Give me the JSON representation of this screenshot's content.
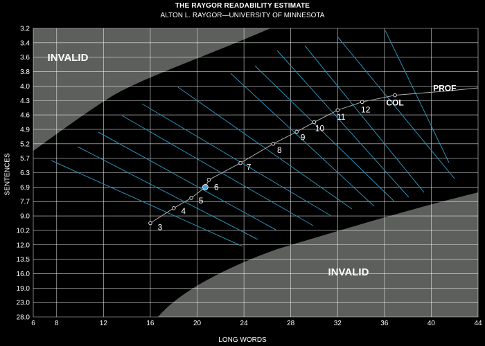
{
  "chart_data": {
    "type": "line",
    "title": "THE RAYGOR READABILITY ESTIMATE",
    "subtitle": "ALTON L. RAYGOR—UNIVERSITY OF MINNESOTA",
    "xlabel": "LONG WORDS",
    "ylabel": "SENTENCES",
    "xlim": [
      6,
      44
    ],
    "x_ticks": [
      "6",
      "8",
      "12",
      "16",
      "20",
      "24",
      "28",
      "32",
      "36",
      "40",
      "44"
    ],
    "y_ticks": [
      "3.2",
      "3.4",
      "3.6",
      "3.8",
      "4.0",
      "4.3",
      "4.6",
      "4.9",
      "5.2",
      "5.7",
      "6.3",
      "6.9",
      "7.7",
      "9.0",
      "10.2",
      "12.0",
      "13.5",
      "16.0",
      "19.0",
      "23.0",
      "28.0"
    ],
    "grid": true,
    "regions": [
      {
        "label": "INVALID",
        "location": "top-left"
      },
      {
        "label": "INVALID",
        "location": "bottom-right"
      }
    ],
    "grade_curve": [
      {
        "label": "3",
        "x": 16.0,
        "y": "9.6"
      },
      {
        "label": "4",
        "x": 18.0,
        "y": "8.3"
      },
      {
        "label": "5",
        "x": 19.5,
        "y": "7.5"
      },
      {
        "label": "6",
        "x": 20.7,
        "y": "6.9"
      },
      {
        "label": "",
        "x": 21.0,
        "y": "6.6"
      },
      {
        "label": "7",
        "x": 23.7,
        "y": "5.9"
      },
      {
        "label": "8",
        "x": 26.5,
        "y": "5.2"
      },
      {
        "label": "9",
        "x": 28.5,
        "y": "4.95"
      },
      {
        "label": "10",
        "x": 30.0,
        "y": "4.75"
      },
      {
        "label": "11",
        "x": 32.0,
        "y": "4.5"
      },
      {
        "label": "12",
        "x": 34.1,
        "y": "4.33"
      },
      {
        "label": "COL",
        "x": 36.9,
        "y": "4.19"
      },
      {
        "label": "PROF",
        "x": 41.5,
        "y": "4.1"
      }
    ],
    "highlighted_point": {
      "x": 20.7,
      "y": "6.9",
      "color": "#4aa3df"
    },
    "colors": {
      "background": "#000000",
      "invalid_region": "#5c5f5b",
      "grid": "#ffffff",
      "grade_lines": "#2a90b8",
      "curve": "#b0b0b0"
    }
  }
}
